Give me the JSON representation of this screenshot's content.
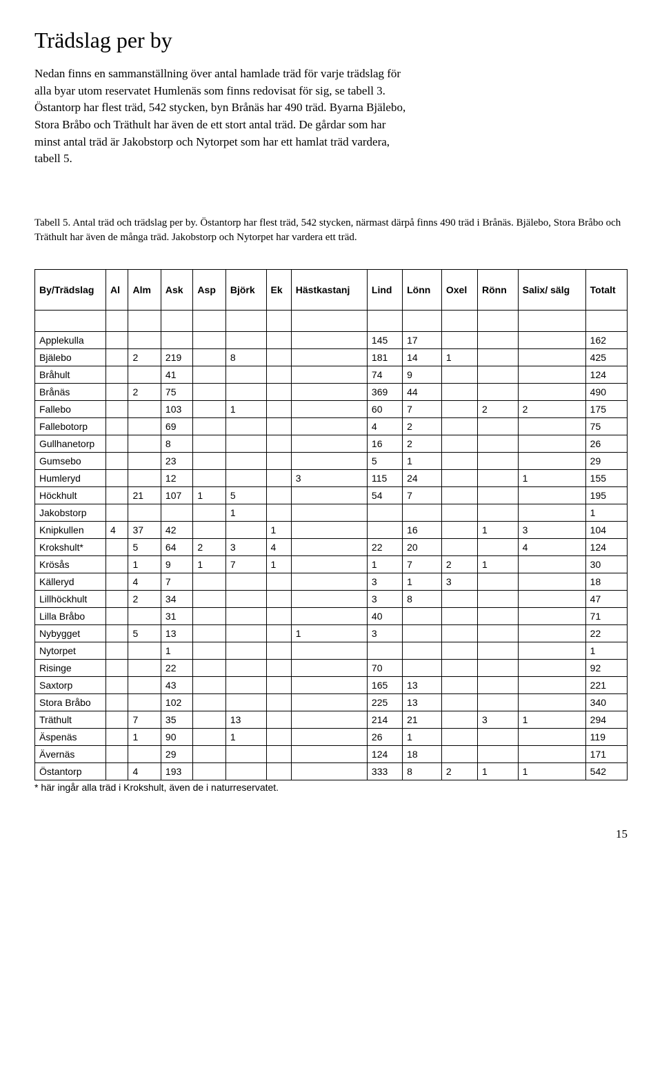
{
  "title": "Trädslag per by",
  "intro": "Nedan finns en sammanställning över antal hamlade träd för varje trädslag för alla byar utom reservatet Humlenäs som finns redovisat för sig, se tabell 3. Östantorp har flest träd, 542 stycken, byn Brånäs har 490 träd. Byarna Bjälebo, Stora Bråbo och Träthult har även de ett stort antal träd. De gårdar som har minst antal träd är Jakobstorp och Nytorpet som har ett hamlat träd vardera, tabell 5.",
  "caption": "Tabell 5. Antal träd och trädslag per by. Östantorp har flest träd, 542 stycken, närmast därpå finns 490 träd i Brånäs. Bjälebo, Stora Bråbo och Träthult har även de många träd. Jakobstorp och Nytorpet har vardera ett träd.",
  "columns": [
    "By/Trädslag",
    "Al",
    "Alm",
    "Ask",
    "Asp",
    "Björk",
    "Ek",
    "Hästkastanj",
    "Lind",
    "Lönn",
    "Oxel",
    "Rönn",
    "Salix/ sälg",
    "Totalt"
  ],
  "rows": [
    {
      "name": "Applekulla",
      "v": [
        "",
        "",
        "",
        "",
        "",
        "",
        "",
        "145",
        "17",
        "",
        "",
        "",
        "162"
      ]
    },
    {
      "name": "Bjälebo",
      "v": [
        "",
        "2",
        "219",
        "",
        "8",
        "",
        "",
        "181",
        "14",
        "1",
        "",
        "",
        "425"
      ]
    },
    {
      "name": "Bråhult",
      "v": [
        "",
        "",
        "41",
        "",
        "",
        "",
        "",
        "74",
        "9",
        "",
        "",
        "",
        "124"
      ]
    },
    {
      "name": "Brånäs",
      "v": [
        "",
        "2",
        "75",
        "",
        "",
        "",
        "",
        "369",
        "44",
        "",
        "",
        "",
        "490"
      ]
    },
    {
      "name": "Fallebo",
      "v": [
        "",
        "",
        "103",
        "",
        "1",
        "",
        "",
        "60",
        "7",
        "",
        "2",
        "2",
        "175"
      ]
    },
    {
      "name": "Fallebotorp",
      "v": [
        "",
        "",
        "69",
        "",
        "",
        "",
        "",
        "4",
        "2",
        "",
        "",
        "",
        "75"
      ]
    },
    {
      "name": "Gullhanetorp",
      "v": [
        "",
        "",
        "8",
        "",
        "",
        "",
        "",
        "16",
        "2",
        "",
        "",
        "",
        "26"
      ]
    },
    {
      "name": "Gumsebo",
      "v": [
        "",
        "",
        "23",
        "",
        "",
        "",
        "",
        "5",
        "1",
        "",
        "",
        "",
        "29"
      ]
    },
    {
      "name": "Humleryd",
      "v": [
        "",
        "",
        "12",
        "",
        "",
        "",
        "3",
        "115",
        "24",
        "",
        "",
        "1",
        "155"
      ]
    },
    {
      "name": "Höckhult",
      "v": [
        "",
        "21",
        "107",
        "1",
        "5",
        "",
        "",
        "54",
        "7",
        "",
        "",
        "",
        "195"
      ]
    },
    {
      "name": "Jakobstorp",
      "v": [
        "",
        "",
        "",
        "",
        "1",
        "",
        "",
        "",
        "",
        "",
        "",
        "",
        "1"
      ]
    },
    {
      "name": "Knipkullen",
      "v": [
        "4",
        "37",
        "42",
        "",
        "",
        "1",
        "",
        "",
        "16",
        "",
        "1",
        "3",
        "104"
      ]
    },
    {
      "name": "Krokshult*",
      "v": [
        "",
        "5",
        "64",
        "2",
        "3",
        "4",
        "",
        "22",
        "20",
        "",
        "",
        "4",
        "124"
      ]
    },
    {
      "name": "Krösås",
      "v": [
        "",
        "1",
        "9",
        "1",
        "7",
        "1",
        "",
        "1",
        "7",
        "2",
        "1",
        "",
        "30"
      ]
    },
    {
      "name": "Källeryd",
      "v": [
        "",
        "4",
        "7",
        "",
        "",
        "",
        "",
        "3",
        "1",
        "3",
        "",
        "",
        "18"
      ]
    },
    {
      "name": "Lillhöckhult",
      "v": [
        "",
        "2",
        "34",
        "",
        "",
        "",
        "",
        "3",
        "8",
        "",
        "",
        "",
        "47"
      ]
    },
    {
      "name": "Lilla Bråbo",
      "v": [
        "",
        "",
        "31",
        "",
        "",
        "",
        "",
        "40",
        "",
        "",
        "",
        "",
        "71"
      ]
    },
    {
      "name": "Nybygget",
      "v": [
        "",
        "5",
        "13",
        "",
        "",
        "",
        "1",
        "3",
        "",
        "",
        "",
        "",
        "22"
      ]
    },
    {
      "name": "Nytorpet",
      "v": [
        "",
        "",
        "1",
        "",
        "",
        "",
        "",
        "",
        "",
        "",
        "",
        "",
        "1"
      ]
    },
    {
      "name": "Risinge",
      "v": [
        "",
        "",
        "22",
        "",
        "",
        "",
        "",
        "70",
        "",
        "",
        "",
        "",
        "92"
      ]
    },
    {
      "name": "Saxtorp",
      "v": [
        "",
        "",
        "43",
        "",
        "",
        "",
        "",
        "165",
        "13",
        "",
        "",
        "",
        "221"
      ]
    },
    {
      "name": "Stora Bråbo",
      "v": [
        "",
        "",
        "102",
        "",
        "",
        "",
        "",
        "225",
        "13",
        "",
        "",
        "",
        "340"
      ]
    },
    {
      "name": "Träthult",
      "v": [
        "",
        "7",
        "35",
        "",
        "13",
        "",
        "",
        "214",
        "21",
        "",
        "3",
        "1",
        "294"
      ]
    },
    {
      "name": "Äspenäs",
      "v": [
        "",
        "1",
        "90",
        "",
        "1",
        "",
        "",
        "26",
        "1",
        "",
        "",
        "",
        "119"
      ]
    },
    {
      "name": "Ävernäs",
      "v": [
        "",
        "",
        "29",
        "",
        "",
        "",
        "",
        "124",
        "18",
        "",
        "",
        "",
        "171"
      ]
    },
    {
      "name": "Östantorp",
      "v": [
        "",
        "4",
        "193",
        "",
        "",
        "",
        "",
        "333",
        "8",
        "2",
        "1",
        "1",
        "542"
      ]
    }
  ],
  "footnote": "* här ingår alla träd i Krokshult, även de i naturreservatet.",
  "page_number": "15"
}
